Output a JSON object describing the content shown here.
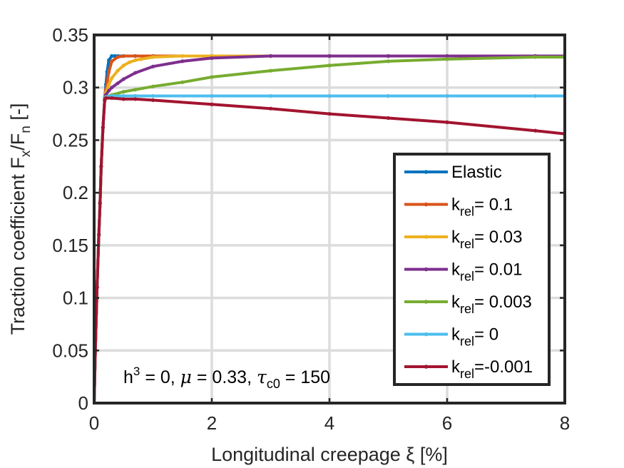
{
  "chart_data": {
    "type": "line",
    "xlabel": "Longitudinal creepage ξ [%]",
    "ylabel": "Traction coefficient F_x/F_n [-]",
    "xlim": [
      0,
      8
    ],
    "ylim": [
      0,
      0.35
    ],
    "xticks": [
      0,
      2,
      4,
      6,
      8
    ],
    "yticks": [
      0,
      0.05,
      0.1,
      0.15,
      0.2,
      0.25,
      0.3,
      0.35
    ],
    "x_tick_labels": [
      "0",
      "2",
      "4",
      "6",
      "8"
    ],
    "y_tick_labels": [
      "0",
      "0.05",
      "0.1",
      "0.15",
      "0.2",
      "0.25",
      "0.3",
      "0.35"
    ],
    "grid": true,
    "legend_position": "bottom-right",
    "annotation": {
      "h_sym": "h",
      "h_exp": "3",
      "part1": " = 0, ",
      "mu_sym": "μ",
      "part2": " = 0.33, ",
      "tau_sym": "τ",
      "tau_sub": "c0",
      "part3": " = 150"
    },
    "series": [
      {
        "name": "Elastic",
        "legend_main": "Elastic",
        "legend_sub": "",
        "legend_rest": "",
        "color": "#0072BD",
        "x": [
          0,
          0.02,
          0.05,
          0.08,
          0.1,
          0.12,
          0.15,
          0.18,
          0.2,
          0.22,
          0.25,
          0.3,
          0.35,
          0.4,
          0.5,
          0.7,
          1,
          2,
          3,
          4,
          5,
          6,
          7.5,
          8
        ],
        "y": [
          0,
          0.05,
          0.11,
          0.16,
          0.19,
          0.225,
          0.262,
          0.29,
          0.303,
          0.315,
          0.326,
          0.33,
          0.33,
          0.33,
          0.33,
          0.33,
          0.33,
          0.33,
          0.33,
          0.33,
          0.33,
          0.33,
          0.33,
          0.33
        ]
      },
      {
        "name": "k_rel= 0.1",
        "legend_main": "k",
        "legend_sub": "rel",
        "legend_rest": "= 0.1",
        "color": "#D95319",
        "x": [
          0,
          0.02,
          0.05,
          0.08,
          0.1,
          0.12,
          0.15,
          0.18,
          0.2,
          0.25,
          0.3,
          0.4,
          0.5,
          0.7,
          1,
          2,
          3,
          4,
          5,
          6,
          7.5,
          8
        ],
        "y": [
          0,
          0.05,
          0.11,
          0.16,
          0.19,
          0.225,
          0.262,
          0.288,
          0.298,
          0.315,
          0.325,
          0.329,
          0.33,
          0.33,
          0.33,
          0.33,
          0.33,
          0.33,
          0.33,
          0.33,
          0.33,
          0.33
        ]
      },
      {
        "name": "k_rel= 0.03",
        "legend_main": "k",
        "legend_sub": "rel",
        "legend_rest": "= 0.03",
        "color": "#EDB120",
        "x": [
          0,
          0.02,
          0.05,
          0.08,
          0.1,
          0.12,
          0.15,
          0.18,
          0.2,
          0.25,
          0.3,
          0.4,
          0.5,
          0.6,
          0.7,
          0.8,
          1,
          1.5,
          2,
          3,
          4,
          5,
          6,
          7.5,
          8
        ],
        "y": [
          0,
          0.05,
          0.11,
          0.16,
          0.19,
          0.225,
          0.262,
          0.288,
          0.295,
          0.303,
          0.309,
          0.316,
          0.321,
          0.324,
          0.326,
          0.327,
          0.329,
          0.33,
          0.33,
          0.33,
          0.33,
          0.33,
          0.33,
          0.33,
          0.33
        ]
      },
      {
        "name": "k_rel= 0.01",
        "legend_main": "k",
        "legend_sub": "rel",
        "legend_rest": "= 0.01",
        "color": "#7E2F8E",
        "x": [
          0,
          0.02,
          0.05,
          0.08,
          0.1,
          0.12,
          0.15,
          0.18,
          0.2,
          0.25,
          0.3,
          0.4,
          0.5,
          0.7,
          1,
          1.5,
          2,
          3,
          4,
          5,
          6,
          7.5,
          8
        ],
        "y": [
          0,
          0.05,
          0.11,
          0.16,
          0.19,
          0.225,
          0.262,
          0.288,
          0.293,
          0.297,
          0.3,
          0.304,
          0.308,
          0.314,
          0.32,
          0.325,
          0.328,
          0.33,
          0.33,
          0.33,
          0.33,
          0.33,
          0.33
        ]
      },
      {
        "name": "k_rel= 0.003",
        "legend_main": "k",
        "legend_sub": "rel",
        "legend_rest": "= 0.003",
        "color": "#77AC30",
        "x": [
          0,
          0.02,
          0.05,
          0.08,
          0.1,
          0.12,
          0.15,
          0.18,
          0.2,
          0.3,
          0.5,
          0.7,
          1,
          1.5,
          2,
          3,
          4,
          5,
          6,
          7.5,
          8
        ],
        "y": [
          0,
          0.05,
          0.11,
          0.16,
          0.19,
          0.225,
          0.262,
          0.288,
          0.291,
          0.293,
          0.296,
          0.298,
          0.301,
          0.305,
          0.31,
          0.316,
          0.321,
          0.325,
          0.327,
          0.329,
          0.329
        ]
      },
      {
        "name": "k_rel= 0",
        "legend_main": "k",
        "legend_sub": "rel",
        "legend_rest": "= 0",
        "color": "#4DBEEE",
        "x": [
          0,
          0.02,
          0.05,
          0.08,
          0.1,
          0.12,
          0.15,
          0.18,
          0.2,
          0.3,
          0.5,
          0.7,
          1,
          2,
          3,
          4,
          5,
          6,
          7.5,
          8
        ],
        "y": [
          0,
          0.05,
          0.11,
          0.16,
          0.19,
          0.225,
          0.262,
          0.288,
          0.291,
          0.292,
          0.292,
          0.292,
          0.292,
          0.292,
          0.292,
          0.292,
          0.292,
          0.292,
          0.292,
          0.292
        ]
      },
      {
        "name": "k_rel=-0.001",
        "legend_main": "k",
        "legend_sub": "rel",
        "legend_rest": "=-0.001",
        "color": "#A2142F",
        "x": [
          0,
          0.02,
          0.05,
          0.08,
          0.1,
          0.12,
          0.15,
          0.18,
          0.2,
          0.3,
          0.5,
          0.7,
          1,
          2,
          3,
          4,
          5,
          6,
          7.5,
          8
        ],
        "y": [
          0,
          0.05,
          0.11,
          0.16,
          0.19,
          0.225,
          0.262,
          0.288,
          0.29,
          0.29,
          0.289,
          0.289,
          0.288,
          0.284,
          0.28,
          0.275,
          0.271,
          0.267,
          0.259,
          0.256
        ]
      }
    ]
  }
}
